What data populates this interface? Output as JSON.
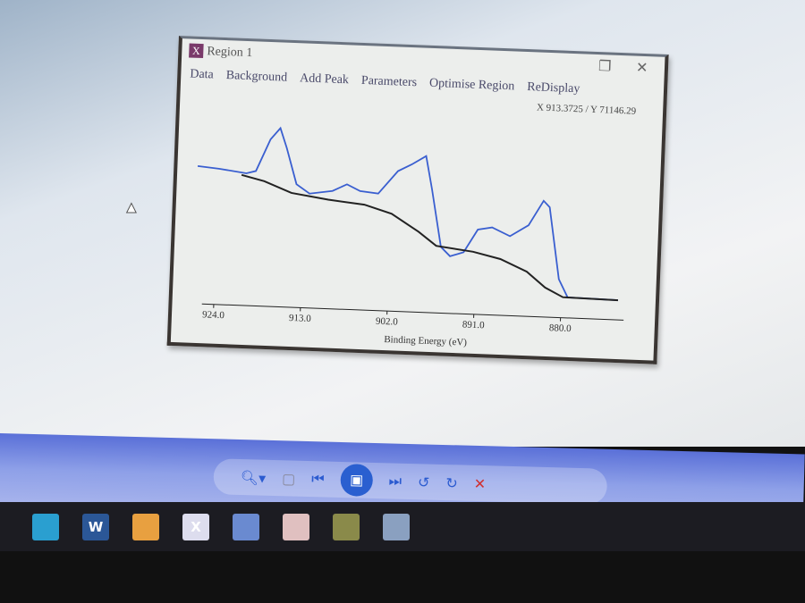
{
  "window": {
    "title": "Region 1",
    "menu": [
      "Data",
      "Background",
      "Add Peak",
      "Parameters",
      "Optimise Region",
      "ReDisplay"
    ],
    "readout": "X 913.3725 / Y 71146.29",
    "restore_icon": "restore-icon",
    "close_icon": "close-icon"
  },
  "chart_data": {
    "type": "line",
    "xlabel": "Binding Energy (eV)",
    "ylabel": "",
    "x_ticks": [
      924.0,
      913.0,
      902.0,
      891.0,
      880.0
    ],
    "x_tick_labels": [
      "924.0",
      "913.0",
      "902.0",
      "891.0",
      "880.0"
    ],
    "xlim": [
      927,
      872
    ],
    "x_reversed": true,
    "grid": false,
    "series": [
      {
        "color": "#3a5fd0",
        "x": [
          926.7,
          924,
          920.5,
          919.3,
          917.6,
          916.4,
          915.5,
          914.1,
          912.4,
          909.5,
          907.7,
          906.0,
          903.7,
          901.3,
          899.6,
          897.8,
          896.9,
          895.5,
          894.3,
          892.6,
          890.9,
          889.1,
          886.8,
          884.5,
          882.7,
          881.9,
          880.4,
          879.2,
          872.8
        ],
        "y": [
          149,
          147,
          143,
          146,
          182,
          195,
          173,
          133,
          123,
          127,
          135,
          128,
          126,
          152,
          160,
          170,
          133,
          69,
          59,
          64,
          90,
          93,
          84,
          97,
          125,
          118,
          38,
          18,
          17
        ]
      },
      {
        "color": "#222222",
        "x": [
          921.1,
          918.2,
          914.7,
          910.0,
          905.4,
          901.9,
          898.4,
          896.1,
          891.4,
          887.9,
          884.5,
          882.1,
          879.8,
          872.8
        ],
        "y": [
          141,
          135,
          123,
          117,
          113,
          104,
          85,
          70,
          65,
          58,
          45,
          28,
          18,
          17
        ]
      }
    ]
  },
  "viewer": {
    "buttons": [
      "zoom-icon",
      "previous-icon",
      "slideshow-icon",
      "next-icon",
      "rotate-left-icon",
      "rotate-right-icon",
      "delete-icon"
    ]
  },
  "taskbar": {
    "apps": [
      {
        "label": "",
        "color": "#2a9fd0"
      },
      {
        "label": "W",
        "color": "#2b5797"
      },
      {
        "label": "",
        "color": "#e8a040"
      },
      {
        "label": "X",
        "color": "#dde"
      },
      {
        "label": "",
        "color": "#6a8ad0"
      },
      {
        "label": "",
        "color": "#e0c0c0"
      },
      {
        "label": "",
        "color": "#8a8a4a"
      },
      {
        "label": "",
        "color": "#8aa0c0"
      }
    ]
  }
}
